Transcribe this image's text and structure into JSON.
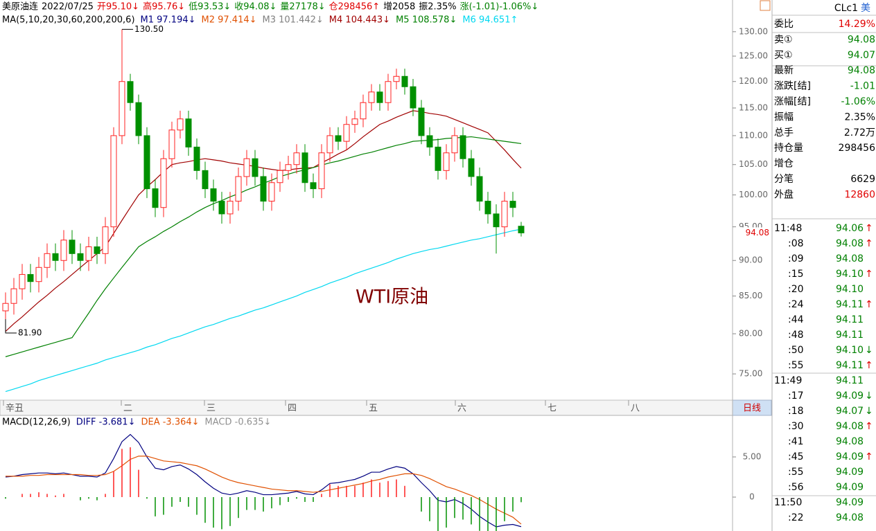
{
  "chart_data": [
    {
      "type": "candlestick",
      "header": [
        {
          "text": "美原油连",
          "color": "#000000"
        },
        {
          "text": "2022/07/25",
          "color": "#000000"
        },
        {
          "text": "开95.10↓",
          "color": "#e00000"
        },
        {
          "text": "高95.76↓",
          "color": "#e00000"
        },
        {
          "text": "低93.53↓",
          "color": "#008000"
        },
        {
          "text": "收94.08↓",
          "color": "#008000"
        },
        {
          "text": "量27178↓",
          "color": "#008000"
        },
        {
          "text": "仓298456↑",
          "color": "#e00000"
        },
        {
          "text": "增2058",
          "color": "#000000"
        },
        {
          "text": "振2.35%",
          "color": "#000000"
        },
        {
          "text": "涨(-1.01)-1.06%↓",
          "color": "#008000"
        }
      ],
      "ma_header": {
        "label": "MA(5,10,20,30,60,200,200,6)",
        "items": [
          {
            "text": "M1 97.194↓",
            "color": "#000080"
          },
          {
            "text": "M2 97.414↓",
            "color": "#e05000"
          },
          {
            "text": "M3 101.442↓",
            "color": "#808080"
          }
        ]
      },
      "log_scale": true,
      "ylim": [
        71.9,
        136.8
      ],
      "yticks": [
        {
          "value": 75,
          "label": "75.00"
        },
        {
          "value": 80,
          "label": "80.00"
        },
        {
          "value": 85,
          "label": "85.00"
        },
        {
          "value": 90,
          "label": "90.00"
        },
        {
          "value": 95,
          "label": "95.00"
        },
        {
          "value": 100,
          "label": "100.00"
        },
        {
          "value": 105,
          "label": "105.00"
        },
        {
          "value": 110,
          "label": "110.00"
        },
        {
          "value": 115,
          "label": "115.00"
        },
        {
          "value": 120,
          "label": "120.00"
        },
        {
          "value": 125,
          "label": "125.00"
        },
        {
          "value": 130,
          "label": "130.00"
        }
      ],
      "up_color": "#ff2020",
      "down_color": "#009000",
      "open": [
        83,
        84,
        86,
        88,
        87,
        89,
        91,
        90,
        93,
        91,
        90,
        92,
        91,
        95,
        110,
        120,
        116,
        110,
        101,
        98,
        106,
        111,
        113,
        108,
        104,
        101,
        99,
        97,
        99,
        103,
        106,
        103,
        99,
        102,
        104,
        105,
        107,
        102,
        101,
        107,
        110,
        109,
        112,
        113,
        116,
        118,
        116,
        120,
        121,
        119,
        115,
        110,
        108,
        104,
        107,
        110,
        106,
        103,
        99,
        97,
        95,
        99,
        95.1
      ],
      "high": [
        85.5,
        87.5,
        89.5,
        89.5,
        90.5,
        92.5,
        92.5,
        94.5,
        94.5,
        92.5,
        93.5,
        93.5,
        96.5,
        111.5,
        130.5,
        121.5,
        117.5,
        111.5,
        102.5,
        107.5,
        112.5,
        114.5,
        114.5,
        109.5,
        105.5,
        102.5,
        100.5,
        100.5,
        104.5,
        107.5,
        107.5,
        104.5,
        103.5,
        105.5,
        106.5,
        108.5,
        108.5,
        103.5,
        108.5,
        111.5,
        111.5,
        113.5,
        114.5,
        117.5,
        119.5,
        119.5,
        121.5,
        122.5,
        122.5,
        120.5,
        116.5,
        111.5,
        109.5,
        108.5,
        111.5,
        111.5,
        107.5,
        104.5,
        100.5,
        98.5,
        100.5,
        100.5,
        95.76
      ],
      "low": [
        81.9,
        82.5,
        84.5,
        85.5,
        85.5,
        87.5,
        88.5,
        88.5,
        89.5,
        88.5,
        88.5,
        89.5,
        89.5,
        93.5,
        108.5,
        114.5,
        108.5,
        99.5,
        96.5,
        96.5,
        104.5,
        109.5,
        106.5,
        102.5,
        99.5,
        97.5,
        95.5,
        95.5,
        97.5,
        101.5,
        101.5,
        97.5,
        97.5,
        100.5,
        102.5,
        103.5,
        100.5,
        99.5,
        99.5,
        105.5,
        107.5,
        107.5,
        110.5,
        111.5,
        114.5,
        114.5,
        114.5,
        118.5,
        117.5,
        113.5,
        108.5,
        106.5,
        102.5,
        102.5,
        105.5,
        104.5,
        101.5,
        97.5,
        95.5,
        91,
        93.5,
        96.5,
        93.53
      ],
      "close": [
        84,
        86,
        88,
        87,
        89,
        91,
        90,
        93,
        91,
        90,
        92,
        91,
        95,
        110,
        120,
        116,
        110,
        101,
        98,
        106,
        111,
        113,
        108,
        104,
        101,
        99,
        97,
        99,
        103,
        106,
        103,
        99,
        102,
        104,
        105,
        107,
        102,
        101,
        107,
        110,
        109,
        112,
        113,
        116,
        118,
        116,
        120,
        121,
        119,
        115,
        110,
        108,
        104,
        107,
        110,
        106,
        103,
        99,
        97,
        95,
        99,
        98,
        94.08
      ],
      "series": [
        {
          "name": "M4 104.443↓",
          "color": "#a00000",
          "values": [
            80.3,
            81.3,
            82.2,
            83.2,
            84.2,
            85.1,
            86.1,
            87.0,
            88.0,
            89,
            90,
            91,
            92,
            94,
            96,
            98,
            100,
            101.3,
            102.5,
            103.8,
            105,
            105.3,
            105.5,
            105.8,
            106,
            105.8,
            105.6,
            105.3,
            105.1,
            104.9,
            104.7,
            104.4,
            104.2,
            104.0,
            104.1,
            104.3,
            104.4,
            104.5,
            105.3,
            106.0,
            106.8,
            107.5,
            108.6,
            109.8,
            110.9,
            112,
            112.6,
            113.3,
            113.9,
            114.5,
            114.3,
            114.0,
            113.8,
            113.5,
            112.9,
            112.3,
            111.7,
            111.1,
            110.5,
            109.0,
            107.5,
            105.9,
            104.4
          ]
        },
        {
          "name": "M5 108.578↓",
          "color": "#008000",
          "values": [
            77.1,
            77.4,
            77.7,
            78.0,
            78.3,
            78.6,
            78.9,
            79.2,
            79.5,
            81.1,
            82.7,
            84.4,
            86.0,
            87.5,
            89.0,
            90.5,
            92.0,
            92.8,
            93.5,
            94.3,
            95.0,
            95.8,
            96.5,
            97.3,
            98.0,
            98.6,
            99.1,
            99.7,
            100.2,
            100.8,
            101.3,
            101.9,
            102.4,
            103.0,
            103.4,
            103.8,
            104.1,
            104.5,
            104.9,
            105.3,
            105.6,
            106.0,
            106.4,
            106.8,
            107.1,
            107.5,
            107.9,
            108.3,
            108.6,
            109.0,
            109.1,
            109.2,
            109.3,
            109.5,
            109.6,
            109.7,
            109.8,
            109.6,
            109.4,
            109.2,
            109.0,
            108.8,
            108.6
          ]
        },
        {
          "name": "M6 94.651↑",
          "color": "#00d8f0",
          "values": [
            72.9,
            73.2,
            73.5,
            73.8,
            74.2,
            74.5,
            74.8,
            75.1,
            75.4,
            75.7,
            76.0,
            76.3,
            76.7,
            77.0,
            77.3,
            77.6,
            77.9,
            78.3,
            78.6,
            79.0,
            79.4,
            79.7,
            80.1,
            80.5,
            80.9,
            81.2,
            81.6,
            82.0,
            82.3,
            82.7,
            83.1,
            83.4,
            83.8,
            84.2,
            84.6,
            85.0,
            85.5,
            85.9,
            86.3,
            86.8,
            87.2,
            87.6,
            88.1,
            88.5,
            88.9,
            89.3,
            89.7,
            90.2,
            90.6,
            91.0,
            91.3,
            91.6,
            91.8,
            92.1,
            92.4,
            92.7,
            93.0,
            93.2,
            93.5,
            93.8,
            94.1,
            94.4,
            94.65
          ]
        }
      ],
      "annotations": {
        "high": "130.50",
        "low": "81.90",
        "watermark": "WTI原油",
        "last_price": "94.08"
      },
      "x_labels": [
        "辛丑",
        "二",
        "三",
        "四",
        "五",
        "六",
        "七",
        "八"
      ],
      "period": "日线"
    },
    {
      "type": "macd",
      "title": "MACD(12,26,9)",
      "ylim": [
        -4.22,
        10.17
      ],
      "yticks": [
        0,
        {
          "value": 5,
          "label": "5.00"
        }
      ],
      "up_color": "#ff2020",
      "down_color": "#009000",
      "series": [
        {
          "name": "DIFF -3.681↓",
          "color": "#000080",
          "values": [
            2.5,
            2.6,
            2.8,
            2.9,
            3.0,
            3.0,
            2.9,
            3.0,
            2.8,
            2.6,
            2.6,
            2.5,
            3.0,
            4.8,
            6.9,
            7.8,
            6.8,
            5.0,
            3.6,
            3.4,
            3.8,
            4.0,
            3.5,
            2.8,
            1.9,
            1.1,
            0.5,
            0.3,
            0.5,
            0.8,
            0.6,
            0.3,
            0.3,
            0.4,
            0.5,
            0.7,
            0.4,
            0.3,
            0.9,
            1.7,
            1.8,
            2.0,
            2.2,
            2.6,
            3.1,
            3.1,
            3.5,
            3.8,
            3.6,
            2.9,
            1.8,
            0.8,
            -0.4,
            -0.6,
            -0.3,
            -0.8,
            -1.5,
            -2.4,
            -3.1,
            -3.7,
            -3.5,
            -3.4,
            -3.681
          ]
        },
        {
          "name": "DEA -3.364↓",
          "color": "#e05000",
          "values": [
            2.6,
            2.6,
            2.6,
            2.7,
            2.7,
            2.8,
            2.8,
            2.8,
            2.8,
            2.8,
            2.7,
            2.7,
            2.8,
            3.2,
            3.9,
            4.7,
            5.1,
            5.1,
            4.8,
            4.5,
            4.4,
            4.3,
            4.1,
            3.9,
            3.5,
            3.0,
            2.5,
            2.1,
            1.8,
            1.6,
            1.4,
            1.2,
            1.0,
            0.9,
            0.8,
            0.8,
            0.7,
            0.6,
            0.7,
            0.9,
            1.1,
            1.3,
            1.5,
            1.7,
            2.0,
            2.2,
            2.5,
            2.7,
            2.9,
            2.9,
            2.7,
            2.3,
            1.8,
            1.3,
            1.0,
            0.6,
            0.2,
            -0.3,
            -0.9,
            -1.5,
            -2.0,
            -2.5,
            -3.364
          ]
        },
        {
          "name": "MACD -0.635↓",
          "color": "#909090",
          "bar": true,
          "values": [
            -0.2,
            0,
            0.4,
            0.4,
            0.6,
            0.4,
            0.2,
            0.4,
            0,
            -0.4,
            -0.2,
            -0.4,
            0.4,
            3.2,
            6.0,
            6.2,
            3.4,
            -0.2,
            -2.4,
            -2.2,
            -1.2,
            -0.6,
            -1.2,
            -2.2,
            -3.2,
            -3.8,
            -4.0,
            -3.6,
            -2.6,
            -1.6,
            -1.6,
            -1.8,
            -1.4,
            -1.0,
            -0.6,
            -0.2,
            -0.6,
            -0.6,
            0.4,
            1.6,
            1.4,
            1.4,
            1.4,
            1.8,
            2.2,
            1.8,
            2.0,
            2.2,
            1.4,
            0,
            -1.8,
            -3.0,
            -4.4,
            -3.8,
            -2.6,
            -2.8,
            -3.4,
            -4.2,
            -4.4,
            -4.4,
            -3.0,
            -1.8,
            -0.635
          ]
        }
      ]
    }
  ],
  "quote": {
    "symbol": "CLc1",
    "market": "美",
    "rows": [
      {
        "label": "委比",
        "value": "14.29%",
        "color": "#e00000"
      },
      {
        "label": "卖①",
        "value": "94.08",
        "color": "#008000"
      },
      {
        "label": "买①",
        "value": "94.07",
        "color": "#008000"
      },
      {
        "label": "最新",
        "value": "94.08",
        "color": "#008000"
      },
      {
        "label": "涨跌[结]",
        "value": "-1.01",
        "color": "#008000"
      },
      {
        "label": "涨幅[结]",
        "value": "-1.06%",
        "color": "#008000"
      },
      {
        "label": "振幅",
        "value": "2.35%",
        "color": "#000000"
      },
      {
        "label": "总手",
        "value": "2.72万",
        "color": "#000000"
      },
      {
        "label": "持仓量",
        "value": "298456",
        "color": "#000000"
      },
      {
        "label": "增仓"
      },
      {
        "label": "分笔",
        "value": "6629",
        "color": "#000000"
      },
      {
        "label": "外盘",
        "value": "12860",
        "color": "#e00000"
      }
    ]
  },
  "ticks": [
    {
      "time": "11:48",
      "price": "94.06",
      "dir": "↑"
    },
    {
      "time": ":08",
      "price": "94.08",
      "dir": "↑"
    },
    {
      "time": ":09",
      "price": "94.08"
    },
    {
      "time": ":15",
      "price": "94.10",
      "dir": "↑"
    },
    {
      "time": ":20",
      "price": "94.10"
    },
    {
      "time": ":24",
      "price": "94.11",
      "dir": "↑"
    },
    {
      "time": ":44",
      "price": "94.11"
    },
    {
      "time": ":48",
      "price": "94.11"
    },
    {
      "time": ":50",
      "price": "94.10",
      "dir": "↓"
    },
    {
      "time": ":55",
      "price": "94.11",
      "dir": "↑"
    },
    {
      "time": "11:49",
      "price": "94.11"
    },
    {
      "time": ":17",
      "price": "94.09",
      "dir": "↓"
    },
    {
      "time": ":18",
      "price": "94.07",
      "dir": "↓"
    },
    {
      "time": ":30",
      "price": "94.08",
      "dir": "↑"
    },
    {
      "time": ":41",
      "price": "94.08"
    },
    {
      "time": ":45",
      "price": "94.09",
      "dir": "↑"
    },
    {
      "time": ":55",
      "price": "94.09"
    },
    {
      "time": ":56",
      "price": "94.09"
    },
    {
      "time": "11:50",
      "price": "94.09"
    },
    {
      "time": ":22",
      "price": "94.08"
    }
  ]
}
